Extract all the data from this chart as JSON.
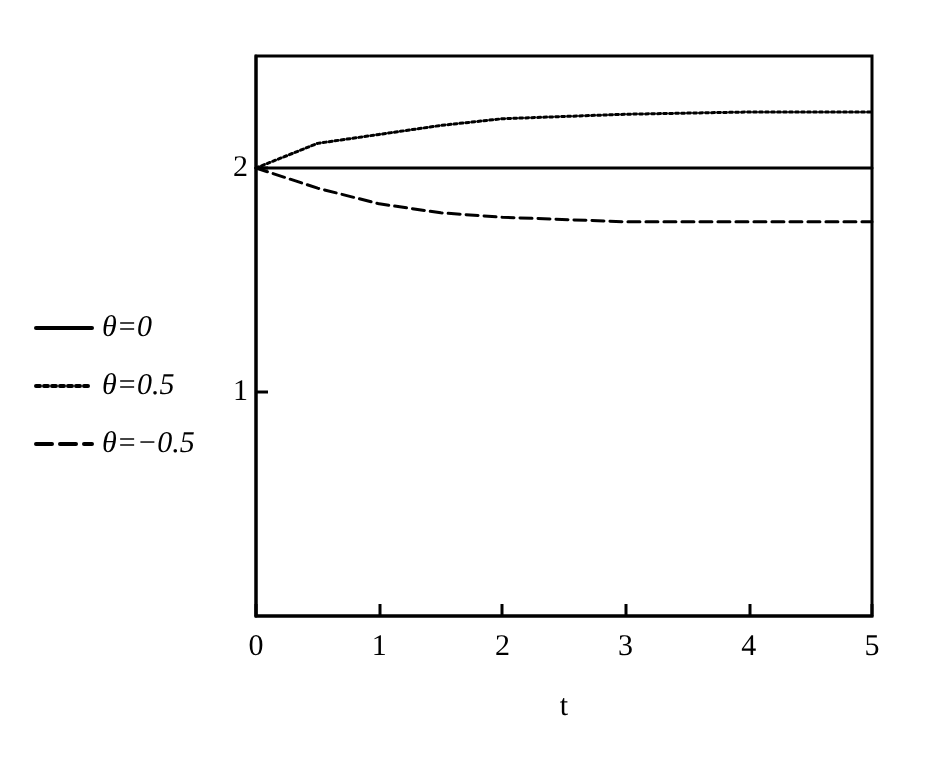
{
  "chart_data": {
    "type": "line",
    "xlabel": "t",
    "x": [
      0,
      0.5,
      1,
      1.5,
      2,
      3,
      4,
      5
    ],
    "series": [
      {
        "name": "θ=0",
        "color": "#000000",
        "line_style": "solid",
        "values": [
          2,
          2,
          2,
          2,
          2,
          2,
          2,
          2
        ]
      },
      {
        "name": "θ=0.5",
        "color": "#000000",
        "line_style": "dotted",
        "values": [
          2,
          2.11,
          2.15,
          2.19,
          2.22,
          2.24,
          2.25,
          2.25
        ]
      },
      {
        "name": "θ=−0.5",
        "color": "#000000",
        "line_style": "dashed",
        "values": [
          2,
          1.91,
          1.84,
          1.8,
          1.78,
          1.76,
          1.76,
          1.76
        ]
      }
    ],
    "xlim": [
      0,
      5
    ],
    "xticks": [
      0,
      1,
      2,
      3,
      4,
      5
    ],
    "ylim": [
      0,
      2.5
    ],
    "yticks": [
      1,
      2
    ],
    "grid": false,
    "legend": "left",
    "marker": "none"
  }
}
